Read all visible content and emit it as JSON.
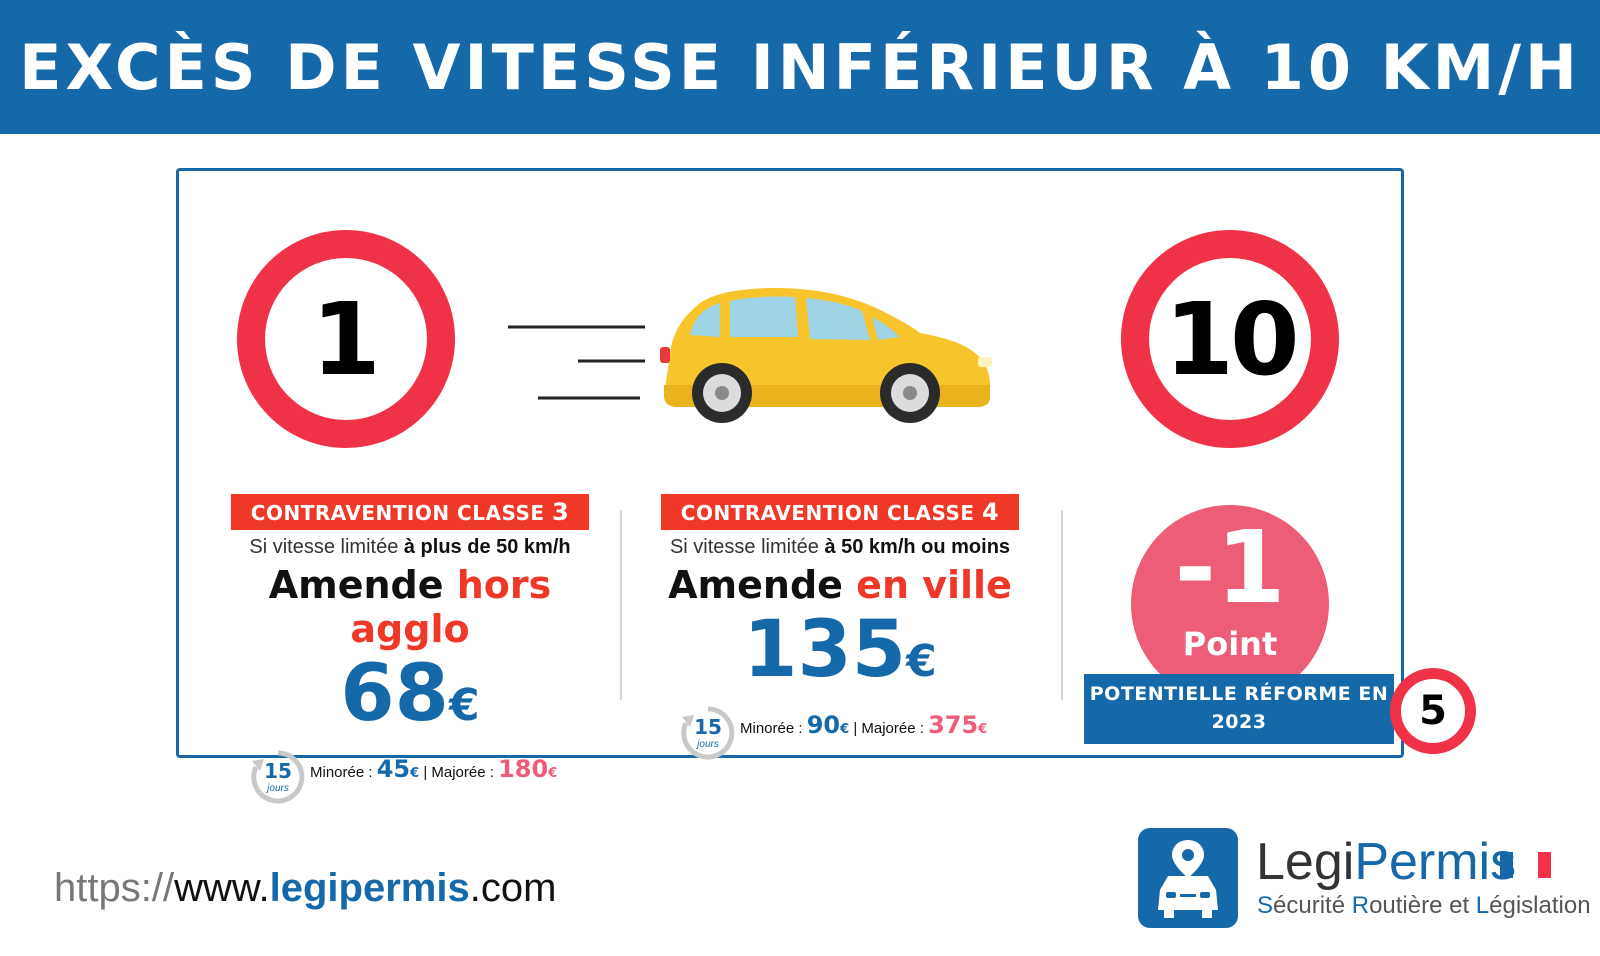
{
  "banner": {
    "title": "EXCÈS DE VITESSE INFÉRIEUR À 10 KM/H"
  },
  "signs": {
    "from": "1",
    "to": "10",
    "reform_speed": "5"
  },
  "colors": {
    "blue": "#1569a9",
    "red": "#f03828",
    "pink": "#ee5d77",
    "sign_red": "#f03246",
    "car_yellow": "#f7c42b"
  },
  "left": {
    "badge_text": "CONTRAVENTION CLASSE ",
    "badge_class": "3",
    "cond_prefix": "Si vitesse limitée ",
    "cond_bold": "à plus de 50 km/h",
    "amende": "Amende ",
    "amende_place": "hors agglo",
    "price": "68",
    "currency": "€",
    "days": "15",
    "days_label": "jours",
    "minoree_label": "Minorée : ",
    "minoree": "45",
    "sep": " | Majorée : ",
    "majoree": "180"
  },
  "mid": {
    "badge_text": "CONTRAVENTION CLASSE ",
    "badge_class": "4",
    "cond_prefix": "Si vitesse limitée ",
    "cond_bold": "à 50 km/h ou moins",
    "amende": "Amende ",
    "amende_place": "en ville",
    "price": "135",
    "currency": "€",
    "days": "15",
    "days_label": "jours",
    "minoree_label": "Minorée : ",
    "minoree": "90",
    "sep": " | Majorée : ",
    "majoree": "375"
  },
  "points": {
    "value": "-1",
    "label": "Point"
  },
  "reform": {
    "line1": "POTENTIELLE RÉFORME EN",
    "line2": "2023"
  },
  "footer": {
    "url_prefix": "https://",
    "url_www": "www.",
    "url_domain": "legipermis",
    "url_tld": ".com",
    "brand_a": "Legi",
    "brand_b": "Permis",
    "tag_s": "S",
    "tag_1": "écurité ",
    "tag_r": "R",
    "tag_2": "outière et ",
    "tag_l": "L",
    "tag_3": "égislation"
  }
}
